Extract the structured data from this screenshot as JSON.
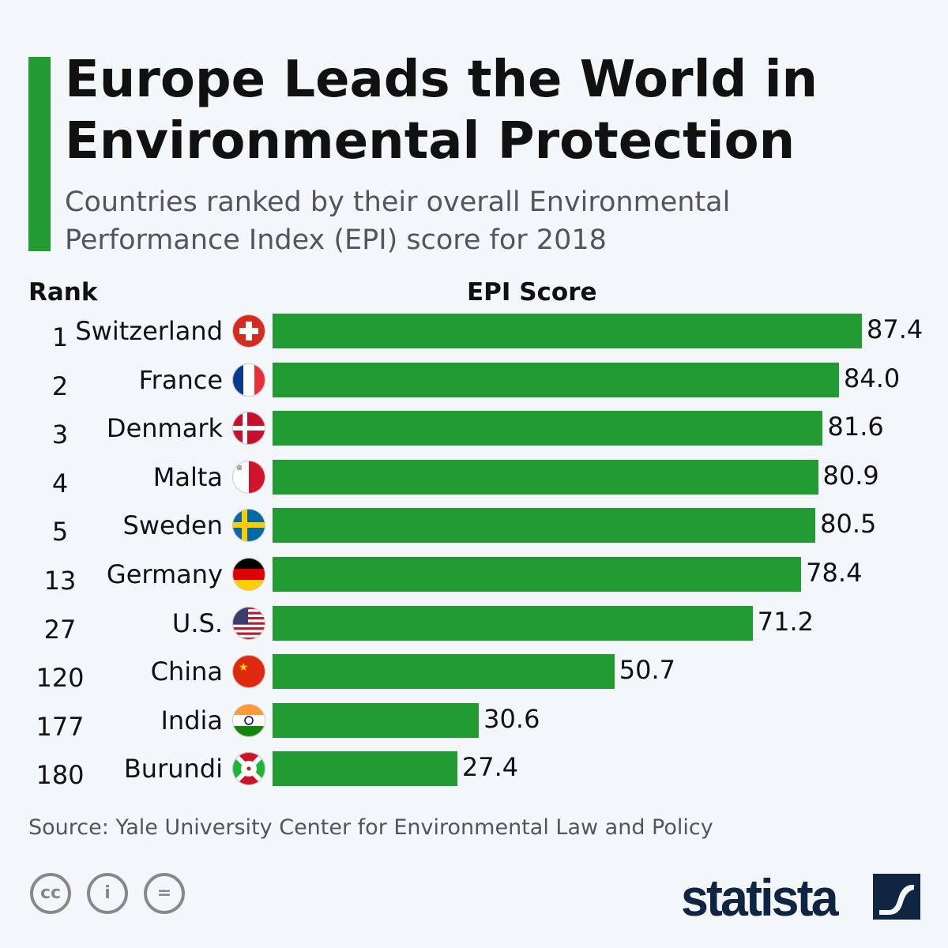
{
  "title": "Europe Leads the World in Environmental Protection",
  "subtitle": "Countries ranked by their overall Environmental Performance Index (EPI) score for 2018",
  "source": "Source: Yale University Center for Environmental Law and Policy",
  "brand": "statista",
  "colors": {
    "bar": "#239b33",
    "accent": "#239b33",
    "background": "#f4f7fa"
  },
  "chart_data": {
    "type": "bar",
    "orientation": "horizontal",
    "rank_header": "Rank",
    "value_header": "EPI Score",
    "xlim": [
      0,
      87.4
    ],
    "grid": false,
    "rows": [
      {
        "rank": "1",
        "country": "Switzerland",
        "flag": "switzerland-flag-icon",
        "value": 87.4,
        "label": "87.4"
      },
      {
        "rank": "2",
        "country": "France",
        "flag": "france-flag-icon",
        "value": 84.0,
        "label": "84.0"
      },
      {
        "rank": "3",
        "country": "Denmark",
        "flag": "denmark-flag-icon",
        "value": 81.6,
        "label": "81.6"
      },
      {
        "rank": "4",
        "country": "Malta",
        "flag": "malta-flag-icon",
        "value": 80.9,
        "label": "80.9"
      },
      {
        "rank": "5",
        "country": "Sweden",
        "flag": "sweden-flag-icon",
        "value": 80.5,
        "label": "80.5"
      },
      {
        "rank": "13",
        "country": "Germany",
        "flag": "germany-flag-icon",
        "value": 78.4,
        "label": "78.4"
      },
      {
        "rank": "27",
        "country": "U.S.",
        "flag": "usa-flag-icon",
        "value": 71.2,
        "label": "71.2"
      },
      {
        "rank": "120",
        "country": "China",
        "flag": "china-flag-icon",
        "value": 50.7,
        "label": "50.7"
      },
      {
        "rank": "177",
        "country": "India",
        "flag": "india-flag-icon",
        "value": 30.6,
        "label": "30.6"
      },
      {
        "rank": "180",
        "country": "Burundi",
        "flag": "burundi-flag-icon",
        "value": 27.4,
        "label": "27.4"
      }
    ]
  }
}
